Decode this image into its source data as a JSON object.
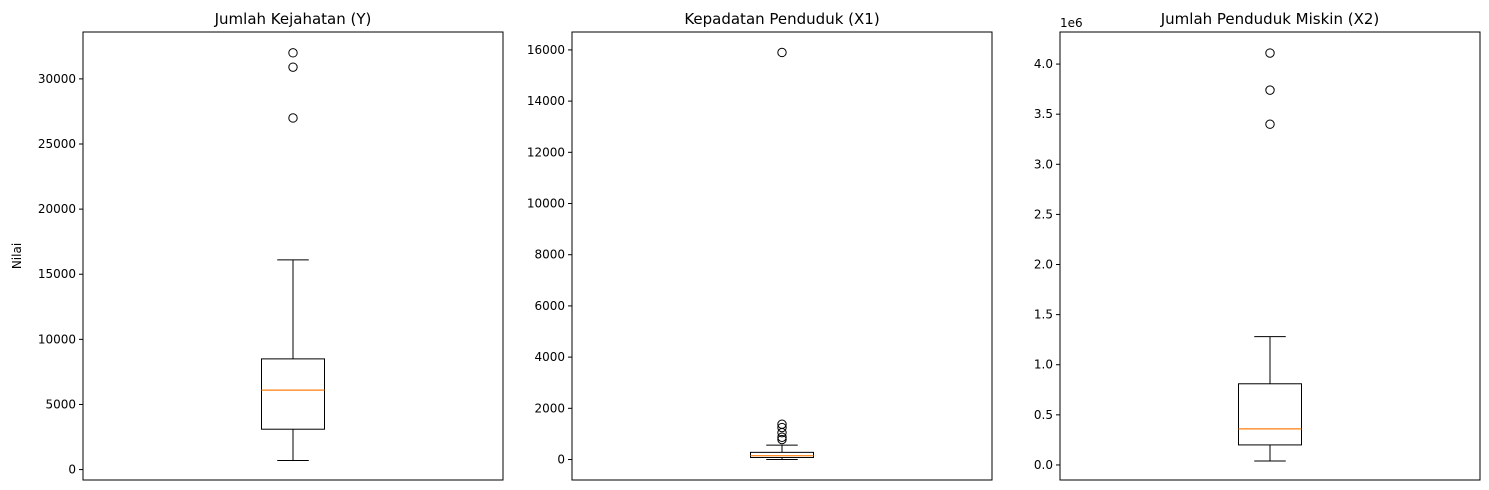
{
  "chart_data": [
    {
      "type": "box",
      "title": "Jumlah Kejahatan (Y)",
      "ylabel": "Nilai",
      "offset_label": "",
      "ylim": [
        -800,
        33600
      ],
      "yticks": [
        0,
        5000,
        10000,
        15000,
        20000,
        25000,
        30000
      ],
      "ytick_labels": [
        "0",
        "5000",
        "10000",
        "15000",
        "20000",
        "25000",
        "30000"
      ],
      "box": {
        "whisker_low": 700,
        "q1": 3100,
        "median": 6100,
        "q3": 8500,
        "whisker_high": 16100
      },
      "outliers": [
        27000,
        30900,
        32000
      ]
    },
    {
      "type": "box",
      "title": "Kepadatan Penduduk (X1)",
      "ylabel": "",
      "offset_label": "",
      "ylim": [
        -800,
        16700
      ],
      "yticks": [
        0,
        2000,
        4000,
        6000,
        8000,
        10000,
        12000,
        14000,
        16000
      ],
      "ytick_labels": [
        "0",
        "2000",
        "4000",
        "6000",
        "8000",
        "10000",
        "12000",
        "14000",
        "16000"
      ],
      "box": {
        "whisker_low": 0,
        "q1": 80,
        "median": 150,
        "q3": 280,
        "whisker_high": 560
      },
      "outliers": [
        780,
        870,
        1050,
        1250,
        1380,
        15900
      ]
    },
    {
      "type": "box",
      "title": "Jumlah Penduduk Miskin (X2)",
      "ylabel": "",
      "offset_label": "1e6",
      "ylim": [
        -150000,
        4320000
      ],
      "yticks": [
        0,
        500000,
        1000000,
        1500000,
        2000000,
        2500000,
        3000000,
        3500000,
        4000000
      ],
      "ytick_labels": [
        "0.0",
        "0.5",
        "1.0",
        "1.5",
        "2.0",
        "2.5",
        "3.0",
        "3.5",
        "4.0"
      ],
      "box": {
        "whisker_low": 40000,
        "q1": 200000,
        "median": 360000,
        "q3": 810000,
        "whisker_high": 1280000
      },
      "outliers": [
        3400000,
        3740000,
        4110000
      ]
    }
  ],
  "colors": {
    "box": "#000000",
    "median": "#ff7f0e",
    "axes": "#000000",
    "background": "#ffffff"
  }
}
